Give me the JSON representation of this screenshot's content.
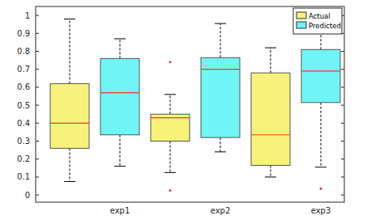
{
  "chart_data": {
    "type": "box",
    "categories": [
      "exp1",
      "exp2",
      "exp3"
    ],
    "series": [
      {
        "name": "Actual",
        "color": "#f7f27a",
        "min": [
          0.075,
          0.125,
          0.1
        ],
        "q1": [
          0.26,
          0.3,
          0.165
        ],
        "median": [
          0.4,
          0.43,
          0.335
        ],
        "q3": [
          0.62,
          0.45,
          0.68
        ],
        "max": [
          0.98,
          0.56,
          0.82
        ],
        "outliers": [
          [],
          [
            0.74,
            0.025
          ],
          []
        ]
      },
      {
        "name": "Predicted",
        "color": "#6ff5f5",
        "min": [
          0.16,
          0.24,
          0.155
        ],
        "q1": [
          0.335,
          0.32,
          0.515
        ],
        "median": [
          0.57,
          0.7,
          0.69
        ],
        "q3": [
          0.76,
          0.765,
          0.81
        ],
        "max": [
          0.87,
          0.955,
          0.93
        ],
        "outliers": [
          [],
          [],
          [
            0.035
          ]
        ]
      }
    ],
    "ylim": [
      -0.04,
      1.05
    ],
    "yticks": [
      0,
      0.1,
      0.2,
      0.3,
      0.4,
      0.5,
      0.6,
      0.7,
      0.8,
      0.9,
      1
    ],
    "grid": false,
    "legend": "top-right"
  }
}
